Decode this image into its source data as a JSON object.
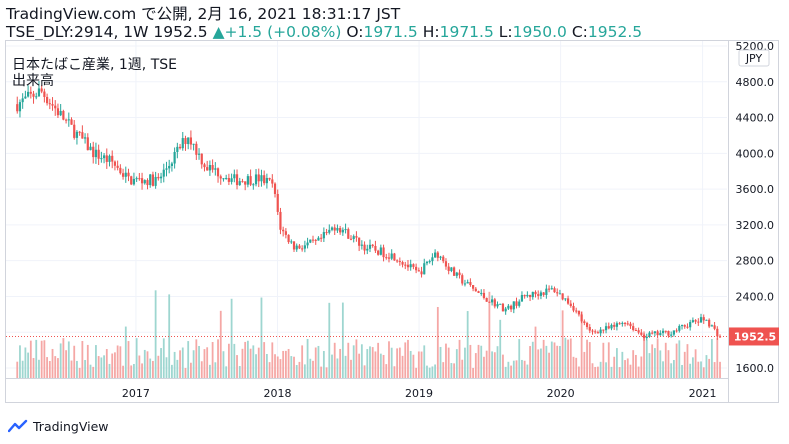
{
  "header": {
    "line1": "TradingView.com で公開, 2月 16, 2021 18:31:17 JST",
    "symbol": "TSE_DLY:2914, 1W",
    "last": "1952.5",
    "arrow": "▲",
    "change": "+1.5 (+0.08%)",
    "o_label": "O:",
    "o_val": "1971.5",
    "h_label": "H:",
    "h_val": "1971.5",
    "l_label": "L:",
    "l_val": "1950.0",
    "c_label": "C:",
    "c_val": "1952.5"
  },
  "pane": {
    "title": "日本たばこ産業, 1週, TSE",
    "volume_label": "出来高"
  },
  "footer": {
    "brand": "TradingView"
  },
  "colors": {
    "up": "#26a69a",
    "down": "#ef5350",
    "vol_up": "#9ed6d0",
    "vol_down": "#f5a7a5"
  },
  "chart_data": {
    "type": "candlestick",
    "y_axis_ticks": [
      "5200.0",
      "4800.0",
      "4400.0",
      "4000.0",
      "3600.0",
      "3200.0",
      "2800.0",
      "2400.0",
      "2000.0",
      "1600.0"
    ],
    "x_axis_ticks": [
      "2017",
      "2018",
      "2019",
      "2020",
      "2021"
    ],
    "currency": "JPY",
    "last_price": "1952.5",
    "ylim": [
      1500,
      5250
    ],
    "price_path": [
      [
        "2016-03-01",
        4550
      ],
      [
        "2016-05-01",
        4700
      ],
      [
        "2016-07-15",
        4300
      ],
      [
        "2016-09-15",
        4000
      ],
      [
        "2016-11-01",
        3900
      ],
      [
        "2016-12-15",
        3700
      ],
      [
        "2017-03-01",
        3700
      ],
      [
        "2017-05-15",
        4200
      ],
      [
        "2017-07-01",
        3850
      ],
      [
        "2017-09-15",
        3700
      ],
      [
        "2017-11-15",
        3720
      ],
      [
        "2017-12-20",
        3650
      ],
      [
        "2018-01-10",
        3150
      ],
      [
        "2018-02-15",
        2950
      ],
      [
        "2018-04-15",
        3000
      ],
      [
        "2018-06-01",
        3200
      ],
      [
        "2018-08-15",
        2950
      ],
      [
        "2018-11-01",
        2850
      ],
      [
        "2018-12-31",
        2650
      ],
      [
        "2019-02-15",
        2900
      ],
      [
        "2019-04-01",
        2650
      ],
      [
        "2019-06-15",
        2400
      ],
      [
        "2019-08-15",
        2250
      ],
      [
        "2019-10-01",
        2400
      ],
      [
        "2019-12-15",
        2480
      ],
      [
        "2020-02-01",
        2300
      ],
      [
        "2020-03-15",
        2000
      ],
      [
        "2020-05-15",
        2050
      ],
      [
        "2020-06-15",
        2130
      ],
      [
        "2020-08-01",
        1960
      ],
      [
        "2020-10-15",
        2000
      ],
      [
        "2020-12-01",
        2100
      ],
      [
        "2021-01-10",
        2150
      ],
      [
        "2021-02-15",
        1952
      ]
    ],
    "time_range": [
      "2016-02-01",
      "2021-03-05"
    ]
  }
}
